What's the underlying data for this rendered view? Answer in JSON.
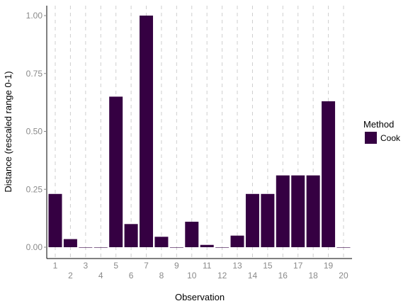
{
  "chart_data": {
    "type": "bar",
    "xlabel": "Observation",
    "ylabel": "Distance (rescaled range 0-1)",
    "categories": [
      "1",
      "2",
      "3",
      "4",
      "5",
      "6",
      "7",
      "8",
      "9",
      "10",
      "11",
      "12",
      "13",
      "14",
      "15",
      "16",
      "17",
      "18",
      "19",
      "20"
    ],
    "series": [
      {
        "name": "Cook",
        "values": [
          0.23,
          0.035,
          0,
          0,
          0.65,
          0.1,
          1.0,
          0.045,
          0,
          0.11,
          0.01,
          0,
          0.05,
          0.23,
          0.23,
          0.31,
          0.31,
          0.31,
          0.63,
          0
        ],
        "color": "#350042"
      }
    ],
    "ylim": [
      0,
      1
    ],
    "yticks": [
      "0.00",
      "0.25",
      "0.50",
      "0.75",
      "1.00"
    ],
    "legend": {
      "title": "Method",
      "position": "right"
    },
    "grid": {
      "vertical_dashed": true,
      "horizontal": false
    }
  }
}
